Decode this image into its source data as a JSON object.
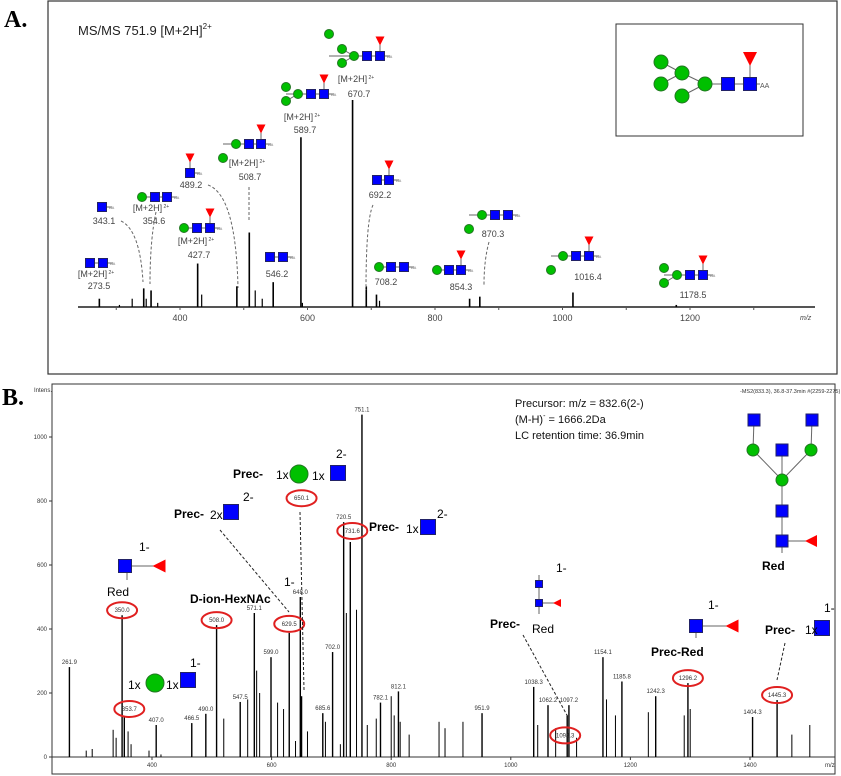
{
  "panel_a": {
    "letter": "A.",
    "title": "MS/MS 751.9 [M+2H]",
    "title_charge": "2+",
    "inset_aa": "AA",
    "ion_label": "[M+2H]",
    "ion_charge": "2+"
  },
  "panel_b": {
    "letter": "B.",
    "precursor_line1": "Precursor: m/z = 832.6(2-)",
    "precursor_line2": "(M-H)",
    "precursor_line2_sup": "-",
    "precursor_line2_rest": " = 1666.2Da",
    "precursor_line3": "LC retention time: 36.9min",
    "scan_header": "-MS2(833.3), 36.8-37.3min #(2259-2275)",
    "structure_label": "Red",
    "annotations": {
      "prec": "Prec-",
      "red": "Red",
      "prec_red": "Prec-Red",
      "d_ion": "D-ion-HexNAc",
      "one_x": "1x",
      "two_x": "2x",
      "charge_1": "1-",
      "charge_2": "2-"
    }
  },
  "colors": {
    "hexnac": "#0000ff",
    "hexose": "#00c000",
    "fucose": "#ff0000",
    "circle_highlight": "#e02020",
    "peak": "#000000"
  },
  "chart_data": [
    {
      "type": "bar",
      "subtype": "mass-spectrum",
      "title": "MS/MS 751.9 [M+2H]2+",
      "xlabel": "m/z",
      "ylabel": "",
      "xlim": [
        240,
        1400
      ],
      "x_ticks": [
        400,
        600,
        800,
        1000,
        1200
      ],
      "y_unit": "relative intensity (%)",
      "peaks": [
        {
          "mz": 273.5,
          "intensity": 4,
          "label": "273.5",
          "ion": true
        },
        {
          "mz": 343.1,
          "intensity": 9,
          "label": "343.1",
          "ion": false
        },
        {
          "mz": 354.6,
          "intensity": 8,
          "label": "354.6",
          "ion": true
        },
        {
          "mz": 427.7,
          "intensity": 21,
          "label": "427.7",
          "ion": true
        },
        {
          "mz": 489.2,
          "intensity": 10,
          "label": "489.2",
          "ion": false
        },
        {
          "mz": 508.7,
          "intensity": 36,
          "label": "508.7",
          "ion": true
        },
        {
          "mz": 546.2,
          "intensity": 12,
          "label": "546.2",
          "ion": false
        },
        {
          "mz": 589.7,
          "intensity": 82,
          "label": "589.7",
          "ion": true
        },
        {
          "mz": 670.7,
          "intensity": 100,
          "label": "670.7",
          "ion": true
        },
        {
          "mz": 692.2,
          "intensity": 10,
          "label": "692.2",
          "ion": false
        },
        {
          "mz": 708.2,
          "intensity": 6,
          "label": "708.2",
          "ion": false
        },
        {
          "mz": 854.3,
          "intensity": 4,
          "label": "854.3",
          "ion": false
        },
        {
          "mz": 870.3,
          "intensity": 5,
          "label": "870.3",
          "ion": false
        },
        {
          "mz": 1016.4,
          "intensity": 7,
          "label": "1016.4",
          "ion": false
        },
        {
          "mz": 1178.5,
          "intensity": 1,
          "label": "1178.5",
          "ion": false
        }
      ],
      "minor_peaks": [
        [
          305,
          1
        ],
        [
          325,
          4
        ],
        [
          347,
          4
        ],
        [
          365,
          2
        ],
        [
          434,
          6
        ],
        [
          518,
          8
        ],
        [
          529,
          4
        ],
        [
          592,
          2
        ],
        [
          713,
          3
        ]
      ]
    },
    {
      "type": "bar",
      "subtype": "mass-spectrum",
      "title": "",
      "xlabel": "m/z",
      "ylabel": "Intens.",
      "xlim": [
        235,
        1530
      ],
      "ylim": [
        0,
        1100
      ],
      "x_ticks": [
        400,
        600,
        800,
        1000,
        1200,
        1400
      ],
      "y_ticks": [
        0,
        200,
        400,
        600,
        800,
        1000
      ],
      "peaks": [
        {
          "mz": 261.9,
          "intensity": 281,
          "label": "261.9",
          "circled": false
        },
        {
          "mz": 350.0,
          "intensity": 443,
          "label": "350.0",
          "circled": true
        },
        {
          "mz": 353.7,
          "intensity": 125,
          "label": "353.7",
          "circled": true
        },
        {
          "mz": 407.0,
          "intensity": 100,
          "label": "407.0",
          "circled": false
        },
        {
          "mz": 466.5,
          "intensity": 106,
          "label": "466.5",
          "circled": false
        },
        {
          "mz": 490.0,
          "intensity": 135,
          "label": "490.0",
          "circled": false
        },
        {
          "mz": 508.0,
          "intensity": 412,
          "label": "508.0",
          "circled": true
        },
        {
          "mz": 547.5,
          "intensity": 172,
          "label": "547.5",
          "circled": false
        },
        {
          "mz": 571.1,
          "intensity": 450,
          "label": "571.1",
          "circled": false
        },
        {
          "mz": 599.0,
          "intensity": 312,
          "label": "599.0",
          "circled": false
        },
        {
          "mz": 629.5,
          "intensity": 388,
          "label": "629.5",
          "circled": true
        },
        {
          "mz": 648.0,
          "intensity": 500,
          "label": "648.0",
          "circled": false
        },
        {
          "mz": 650.1,
          "intensity": 190,
          "label": "650.1",
          "circled": true
        },
        {
          "mz": 685.6,
          "intensity": 137,
          "label": "685.6",
          "circled": false
        },
        {
          "mz": 702.0,
          "intensity": 328,
          "label": "702.0",
          "circled": false
        },
        {
          "mz": 720.5,
          "intensity": 734,
          "label": "720.5",
          "circled": false
        },
        {
          "mz": 731.6,
          "intensity": 672,
          "label": "731.6",
          "circled": true
        },
        {
          "mz": 751.1,
          "intensity": 1070,
          "label": "751.1",
          "circled": false
        },
        {
          "mz": 782.1,
          "intensity": 170,
          "label": "782.1",
          "circled": false
        },
        {
          "mz": 812.1,
          "intensity": 205,
          "label": "812.1",
          "circled": false
        },
        {
          "mz": 951.9,
          "intensity": 137,
          "label": "951.9",
          "circled": false
        },
        {
          "mz": 1038.3,
          "intensity": 219,
          "label": "1038.3",
          "circled": false
        },
        {
          "mz": 1062.2,
          "intensity": 162,
          "label": "1062.2",
          "circled": false
        },
        {
          "mz": 1094.3,
          "intensity": 130,
          "label": "1094.3",
          "circled": true
        },
        {
          "mz": 1097.2,
          "intensity": 162,
          "label": "1097.2",
          "circled": false
        },
        {
          "mz": 1154.1,
          "intensity": 312,
          "label": "1154.1",
          "circled": false
        },
        {
          "mz": 1185.8,
          "intensity": 236,
          "label": "1185.8",
          "circled": false
        },
        {
          "mz": 1242.3,
          "intensity": 190,
          "label": "1242.3",
          "circled": false
        },
        {
          "mz": 1296.2,
          "intensity": 231,
          "label": "1296.2",
          "circled": true
        },
        {
          "mz": 1404.3,
          "intensity": 125,
          "label": "1404.3",
          "circled": false
        },
        {
          "mz": 1445.3,
          "intensity": 178,
          "label": "1445.3",
          "circled": true
        }
      ],
      "minor_peaks": [
        [
          290,
          20
        ],
        [
          300,
          25
        ],
        [
          335,
          85
        ],
        [
          340,
          60
        ],
        [
          360,
          80
        ],
        [
          365,
          40
        ],
        [
          395,
          20
        ],
        [
          415,
          8
        ],
        [
          520,
          120
        ],
        [
          560,
          180
        ],
        [
          575,
          270
        ],
        [
          580,
          200
        ],
        [
          610,
          170
        ],
        [
          620,
          150
        ],
        [
          640,
          50
        ],
        [
          660,
          80
        ],
        [
          690,
          110
        ],
        [
          715,
          40
        ],
        [
          725,
          450
        ],
        [
          742,
          460
        ],
        [
          760,
          100
        ],
        [
          775,
          120
        ],
        [
          800,
          190
        ],
        [
          805,
          130
        ],
        [
          815,
          110
        ],
        [
          830,
          70
        ],
        [
          880,
          110
        ],
        [
          890,
          90
        ],
        [
          920,
          110
        ],
        [
          1045,
          100
        ],
        [
          1075,
          90
        ],
        [
          1110,
          60
        ],
        [
          1160,
          180
        ],
        [
          1175,
          130
        ],
        [
          1230,
          140
        ],
        [
          1290,
          130
        ],
        [
          1300,
          150
        ],
        [
          1470,
          70
        ],
        [
          1500,
          100
        ]
      ]
    }
  ]
}
